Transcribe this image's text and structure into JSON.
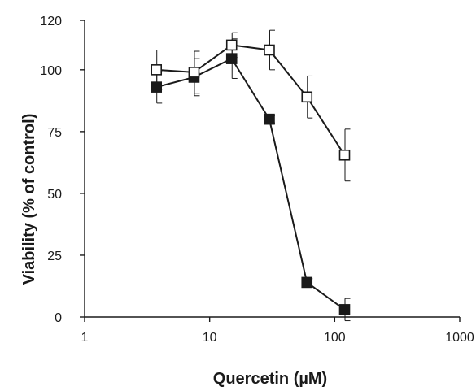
{
  "chart_data": {
    "type": "line",
    "title": "",
    "xlabel": "Quercetin (µM)",
    "ylabel": "Viability (% of control)",
    "x_scale": "log",
    "xlim": [
      1,
      1000
    ],
    "ylim": [
      0,
      120
    ],
    "x_ticks": [
      1,
      10,
      100,
      1000
    ],
    "x_tick_labels": [
      "1",
      "10",
      "100",
      "1000"
    ],
    "y_ticks": [
      0,
      25,
      50,
      75,
      100,
      120
    ],
    "y_tick_labels": [
      "0",
      "25",
      "50",
      "75",
      "100",
      "120"
    ],
    "grid": false,
    "legend": "none",
    "series": [
      {
        "marker": "filled-square",
        "color": "#1a1a1a",
        "points": [
          {
            "x": 3.75,
            "y": 93,
            "err": 6.5
          },
          {
            "x": 7.5,
            "y": 97,
            "err": 7.5
          },
          {
            "x": 15,
            "y": 104.5,
            "err": 8
          },
          {
            "x": 30,
            "y": 80,
            "err": 1.5
          },
          {
            "x": 60,
            "y": 14,
            "err": 1.5
          },
          {
            "x": 120,
            "y": 3,
            "err": 4.5
          }
        ]
      },
      {
        "marker": "open-square",
        "color": "#1a1a1a",
        "points": [
          {
            "x": 3.75,
            "y": 100,
            "err": 8
          },
          {
            "x": 7.5,
            "y": 99,
            "err": 8.5
          },
          {
            "x": 15,
            "y": 110,
            "err": 5
          },
          {
            "x": 30,
            "y": 108,
            "err": 8
          },
          {
            "x": 60,
            "y": 89,
            "err": 8.5
          },
          {
            "x": 120,
            "y": 65.5,
            "err": 10.5
          }
        ]
      }
    ]
  }
}
